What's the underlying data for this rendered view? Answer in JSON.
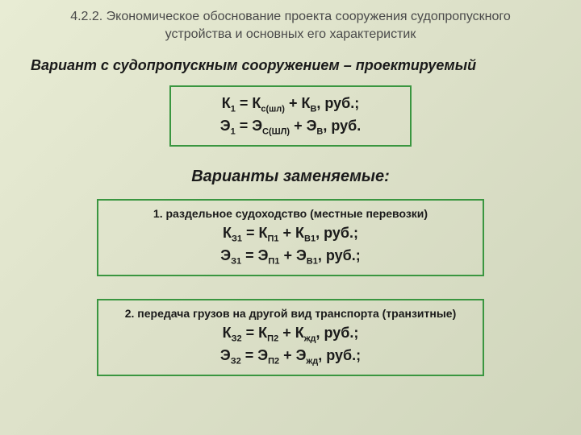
{
  "colors": {
    "border": "#3a9640",
    "text_main": "#1a1a1a",
    "text_title": "#4a4a4a",
    "bg_gradient_start": "#e8ecd4",
    "bg_gradient_end": "#d0d6bc"
  },
  "typography": {
    "title_fontsize": 16,
    "heading_fontsize": 18,
    "heading_center_fontsize": 20,
    "formula_fontsize": 18,
    "label_fontsize": 14,
    "sub_fontsize": 11,
    "font_family": "Arial"
  },
  "title_line1": "4.2.2. Экономическое обоснование проекта сооружения судопропускного",
  "title_line2": "устройства  и основных его характеристик",
  "heading1": "Вариант с судопропускным сооружением – проектируемый",
  "box1": {
    "formula1_html": "К<sub>1</sub> = К<sub>с(шл)</sub> + К<sub>В</sub>, руб.;",
    "formula2_html": "Э<sub>1</sub> = Э<sub>С(ШЛ)</sub> + Э<sub>В</sub>, руб."
  },
  "heading2": "Варианты заменяемые:",
  "box2": {
    "label": "1. раздельное судоходство (местные перевозки)",
    "formula1_html": "К<sub>З1</sub> = К<sub>П1</sub> + К<sub>В1</sub>, руб.;",
    "formula2_html": "Э<sub>З1</sub> = Э<sub>П1</sub> + Э<sub>В1</sub>, руб.;"
  },
  "box3": {
    "label": "2. передача грузов на другой вид транспорта (транзитные)",
    "formula1_html": "К<sub>З2</sub> = К<sub>П2</sub> + К<sub>жд</sub>, руб.;",
    "formula2_html": "Э<sub>З2</sub> = Э<sub>П2</sub> + Э<sub>жд</sub>, руб.;"
  }
}
